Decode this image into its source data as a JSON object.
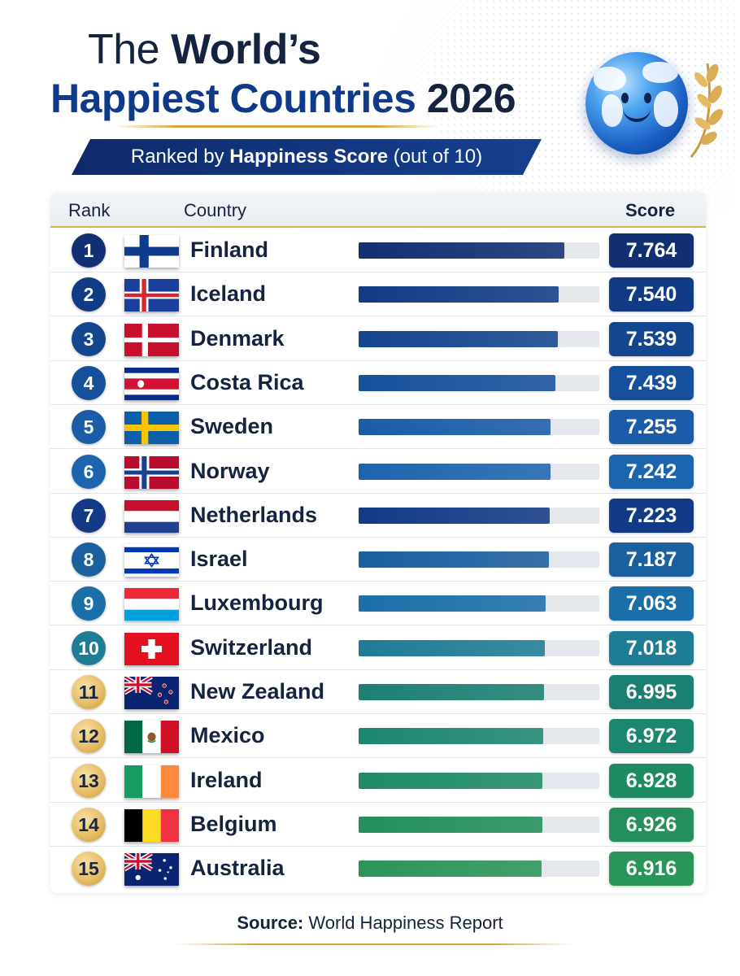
{
  "header": {
    "title_the": "The",
    "title_worlds": "World’s",
    "title_line2": "Happiest Countries",
    "year": "2026",
    "subtitle_pre": "Ranked by",
    "subtitle_bold": "Happiness Score",
    "subtitle_post": "(out of 10)"
  },
  "table": {
    "col_rank": "Rank",
    "col_country": "Country",
    "col_score": "Score"
  },
  "chart_data": {
    "type": "bar",
    "orientation": "horizontal",
    "title": "The World’s Happiest Countries 2026",
    "subtitle": "Ranked by Happiness Score (out of 10)",
    "xlabel": "Score",
    "ylabel": "Country",
    "xlim": [
      0,
      10
    ],
    "categories": [
      "Finland",
      "Iceland",
      "Denmark",
      "Costa Rica",
      "Sweden",
      "Norway",
      "Netherlands",
      "Israel",
      "Luxembourg",
      "Switzerland",
      "New Zealand",
      "Mexico",
      "Ireland",
      "Belgium",
      "Australia"
    ],
    "ranks": [
      "1",
      "2",
      "3",
      "4",
      "5",
      "6",
      "7",
      "8",
      "9",
      "10",
      "11",
      "12",
      "13",
      "14",
      "15"
    ],
    "values": [
      7.764,
      7.54,
      7.539,
      7.439,
      7.255,
      7.242,
      7.223,
      7.187,
      7.063,
      7.018,
      6.995,
      6.972,
      6.928,
      6.926,
      6.916
    ],
    "value_labels": [
      "7.764",
      "7.540",
      "7.539",
      "7.439",
      "7.255",
      "7.242",
      "7.223",
      "7.187",
      "7.063",
      "7.018",
      "6.995",
      "6.972",
      "6.928",
      "6.926",
      "6.916"
    ],
    "colors": [
      "#112f72",
      "#123b85",
      "#14458f",
      "#16509c",
      "#1a5ca8",
      "#1d64ae",
      "#133a86",
      "#1a5f9e",
      "#1b6fa8",
      "#1f7c95",
      "#1b8072",
      "#1c8770",
      "#1e8b63",
      "#228f5c",
      "#2a955a"
    ],
    "flags": [
      "finland-flag",
      "iceland-flag",
      "denmark-flag",
      "costa-rica-flag",
      "sweden-flag",
      "norway-flag",
      "netherlands-flag",
      "israel-flag",
      "luxembourg-flag",
      "switzerland-flag",
      "new-zealand-flag",
      "mexico-flag",
      "ireland-flag",
      "belgium-flag",
      "australia-flag"
    ]
  },
  "footer": {
    "source_label": "Source:",
    "source_value": "World Happiness Report"
  }
}
